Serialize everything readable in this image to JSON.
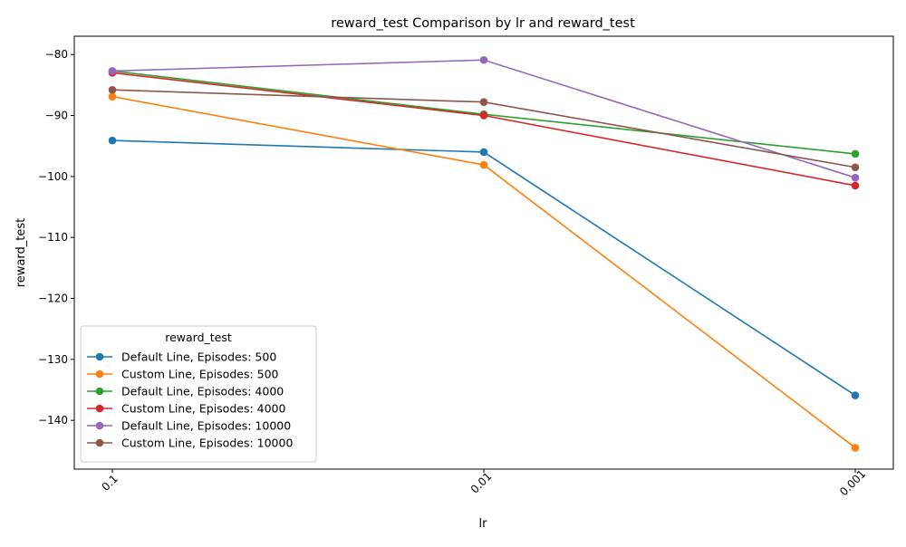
{
  "chart_data": {
    "type": "line",
    "title": "reward_test Comparison by lr and reward_test",
    "xlabel": "lr",
    "ylabel": "reward_test",
    "categories": [
      "0.1",
      "0.01",
      "0.001"
    ],
    "ylim": [
      -148,
      -77
    ],
    "yticks": [
      -80,
      -90,
      -100,
      -110,
      -120,
      -130,
      -140
    ],
    "grid": false,
    "legend": {
      "title": "reward_test",
      "placement": "lower-left"
    },
    "series": [
      {
        "name": "Default Line, Episodes: 500",
        "color": "#1f77b4",
        "values": [
          -94.1,
          -96.0,
          -135.9
        ]
      },
      {
        "name": "Custom Line, Episodes: 500",
        "color": "#ff7f0e",
        "values": [
          -86.9,
          -98.1,
          -144.5
        ]
      },
      {
        "name": "Default Line, Episodes: 4000",
        "color": "#2ca02c",
        "values": [
          -82.7,
          -89.8,
          -96.3
        ]
      },
      {
        "name": "Custom Line, Episodes: 4000",
        "color": "#d62728",
        "values": [
          -83.0,
          -90.0,
          -101.5
        ]
      },
      {
        "name": "Default Line, Episodes: 10000",
        "color": "#9467bd",
        "values": [
          -82.7,
          -80.9,
          -100.2
        ]
      },
      {
        "name": "Custom Line, Episodes: 10000",
        "color": "#8c564b",
        "values": [
          -85.8,
          -87.8,
          -98.5
        ]
      }
    ]
  }
}
